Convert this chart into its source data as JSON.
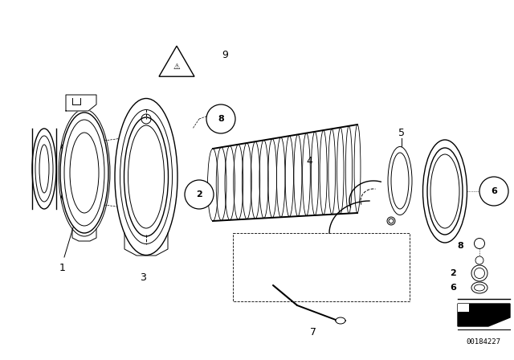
{
  "bg_color": "#ffffff",
  "line_color": "#000000",
  "fig_width": 6.4,
  "fig_height": 4.48,
  "dpi": 100,
  "reference_number": "00184227"
}
